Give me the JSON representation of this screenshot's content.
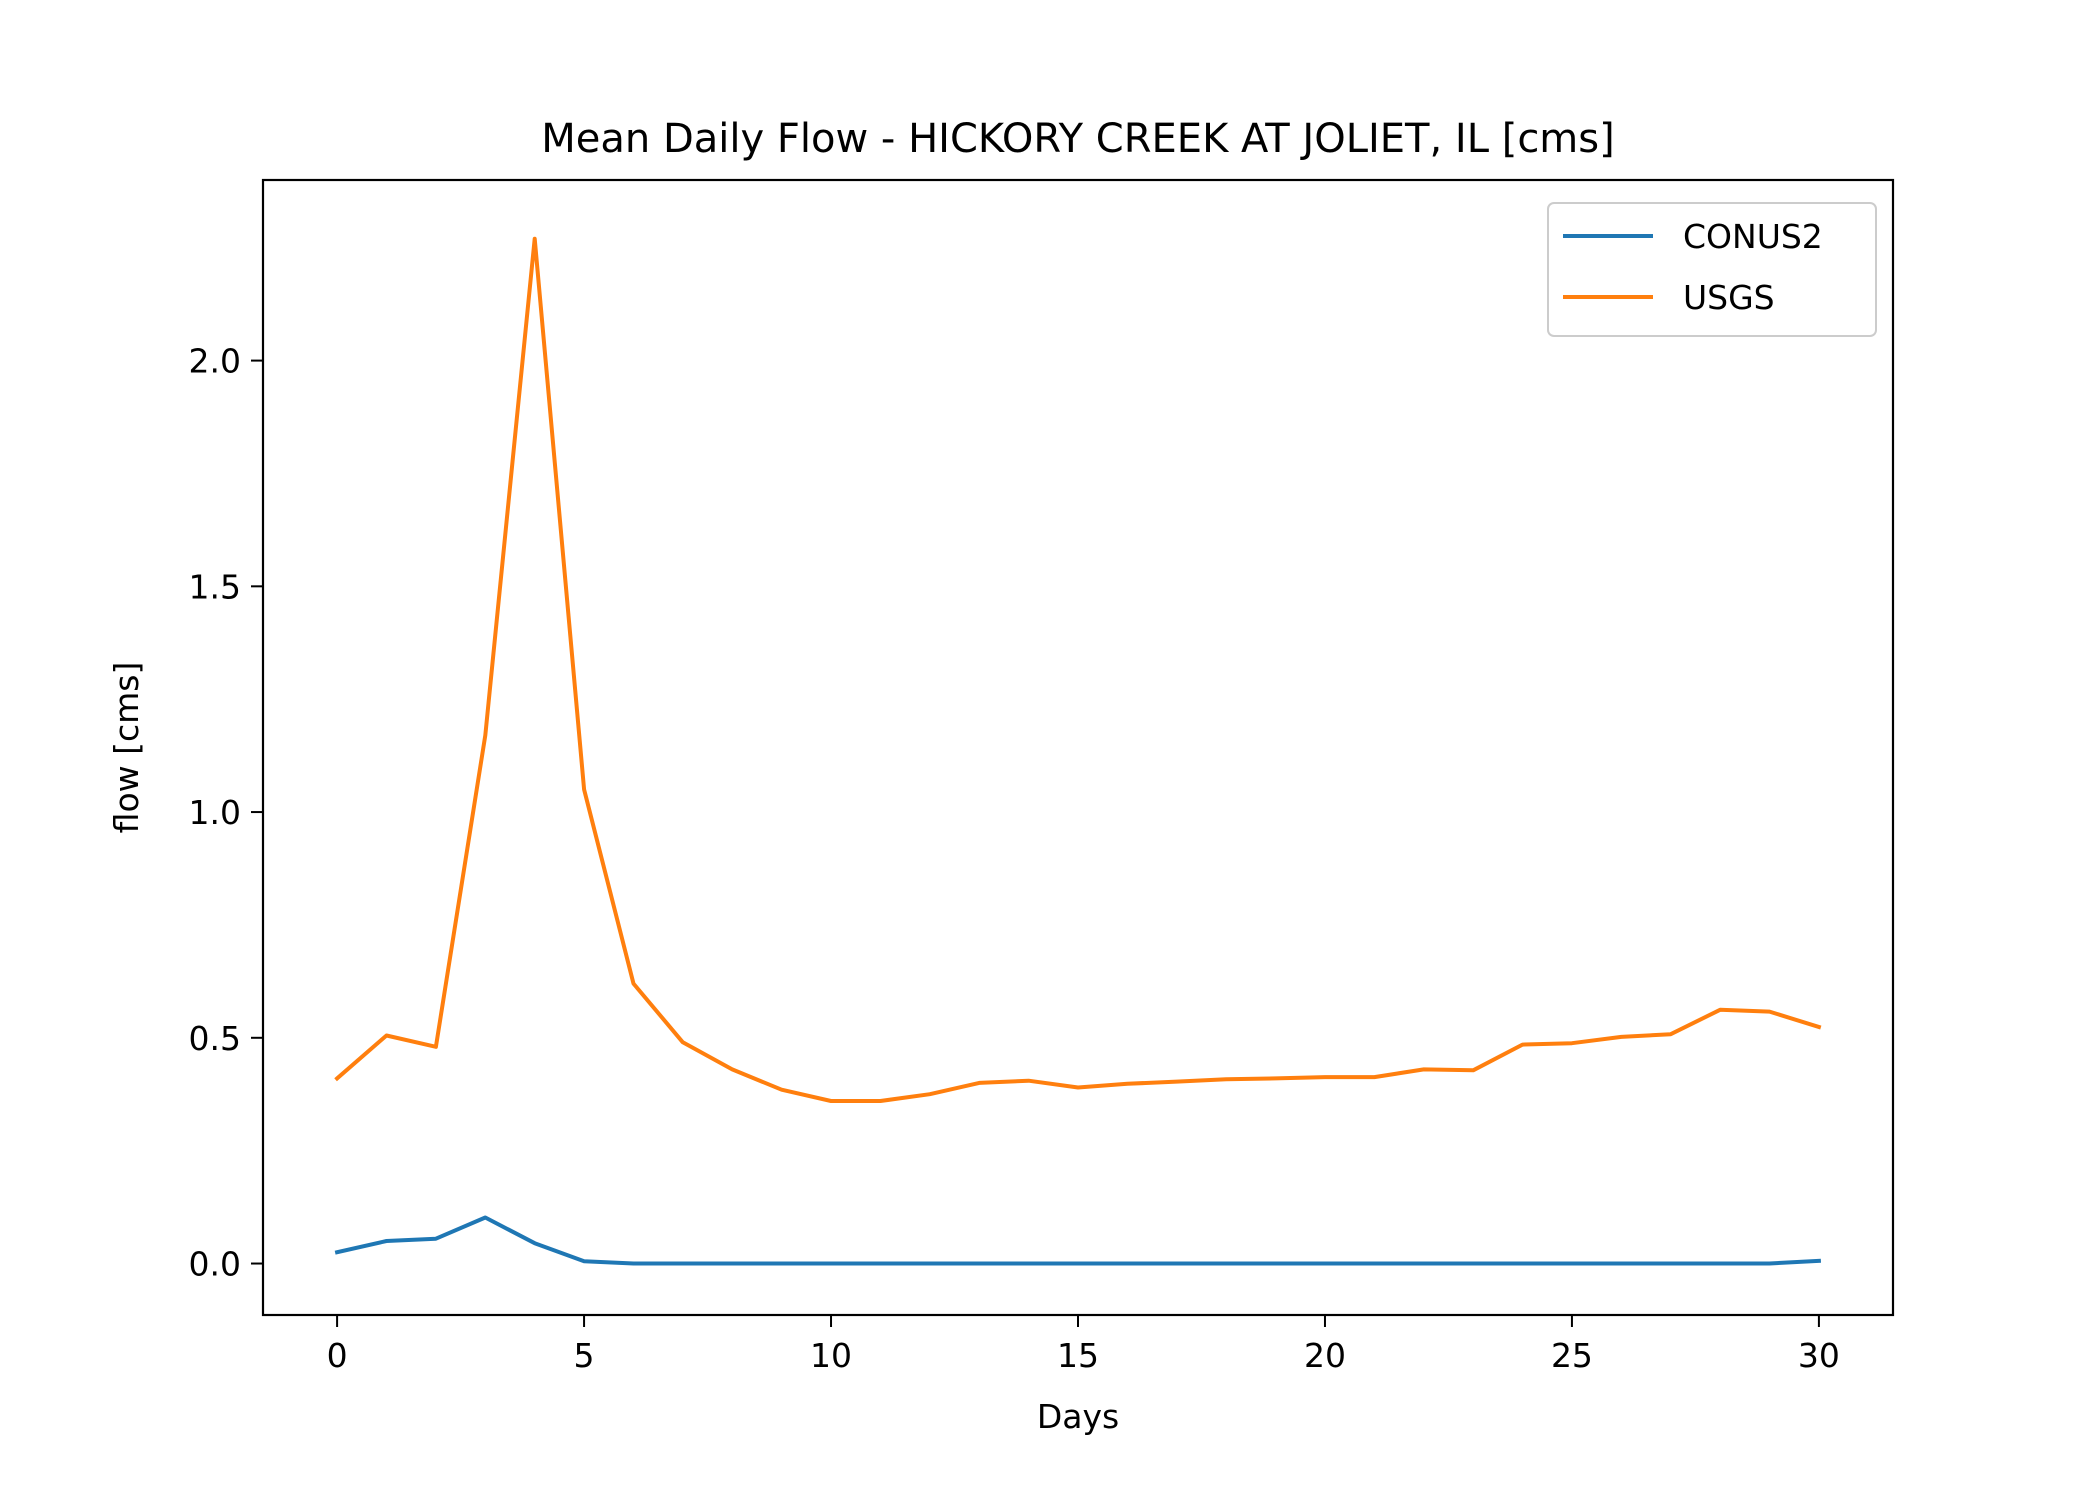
{
  "chart_data": {
    "type": "line",
    "title": "Mean Daily Flow - HICKORY CREEK AT JOLIET, IL [cms]",
    "xlabel": "Days",
    "ylabel": "flow [cms]",
    "xlim": [
      -1.5,
      31.5
    ],
    "ylim": [
      -0.114,
      2.4
    ],
    "xticks": [
      0,
      5,
      10,
      15,
      20,
      25,
      30
    ],
    "xtick_labels": [
      "0",
      "5",
      "10",
      "15",
      "20",
      "25",
      "30"
    ],
    "yticks": [
      0.0,
      0.5,
      1.0,
      1.5,
      2.0
    ],
    "ytick_labels": [
      "0.0",
      "0.5",
      "1.0",
      "1.5",
      "2.0"
    ],
    "grid": false,
    "legend_position": "top-right",
    "x": [
      0,
      1,
      2,
      3,
      4,
      5,
      6,
      7,
      8,
      9,
      10,
      11,
      12,
      13,
      14,
      15,
      16,
      17,
      18,
      19,
      20,
      21,
      22,
      23,
      24,
      25,
      26,
      27,
      28,
      29,
      30
    ],
    "series": [
      {
        "name": "CONUS2",
        "color": "#1f77b4",
        "values": [
          0.025,
          0.05,
          0.055,
          0.102,
          0.045,
          0.005,
          0.0,
          0.0,
          0.0,
          0.0,
          0.0,
          0.0,
          0.0,
          0.0,
          0.0,
          0.0,
          0.0,
          0.0,
          0.0,
          0.0,
          0.0,
          0.0,
          0.0,
          0.0,
          0.0,
          0.0,
          0.0,
          0.0,
          0.0,
          0.0,
          0.006
        ]
      },
      {
        "name": "USGS",
        "color": "#ff7f0e",
        "values": [
          0.41,
          0.505,
          0.48,
          1.17,
          2.27,
          1.05,
          0.62,
          0.49,
          0.43,
          0.385,
          0.36,
          0.36,
          0.375,
          0.4,
          0.405,
          0.39,
          0.398,
          0.403,
          0.408,
          0.41,
          0.413,
          0.413,
          0.43,
          0.428,
          0.485,
          0.488,
          0.502,
          0.508,
          0.562,
          0.558,
          0.524
        ]
      }
    ]
  }
}
